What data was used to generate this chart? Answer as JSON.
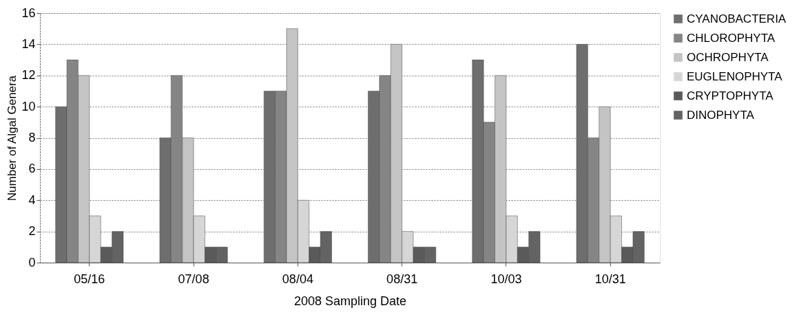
{
  "chart_data": {
    "type": "bar",
    "xlabel": "2008 Sampling Date",
    "ylabel": "Number of Algal Genera",
    "categories": [
      "05/16",
      "07/08",
      "08/04",
      "08/31",
      "10/03",
      "10/31"
    ],
    "series": [
      {
        "name": "CYANOBACTERIA",
        "color": "#6e6e6e",
        "values": [
          10,
          8,
          11,
          11,
          13,
          14
        ]
      },
      {
        "name": "CHLOROPHYTA",
        "color": "#858585",
        "values": [
          13,
          12,
          11,
          12,
          9,
          8
        ]
      },
      {
        "name": "OCHROPHYTA",
        "color": "#c4c4c4",
        "values": [
          12,
          8,
          15,
          14,
          12,
          10
        ]
      },
      {
        "name": "EUGLENOPHYTA",
        "color": "#d6d6d6",
        "values": [
          3,
          3,
          4,
          2,
          3,
          3
        ]
      },
      {
        "name": "CRYPTOPHYTA",
        "color": "#5a5a5a",
        "values": [
          1,
          1,
          1,
          1,
          1,
          1
        ]
      },
      {
        "name": "DINOPHYTA",
        "color": "#636363",
        "values": [
          2,
          1,
          2,
          1,
          2,
          2
        ]
      }
    ],
    "ylim": [
      0,
      16
    ],
    "yticks": [
      0,
      2,
      4,
      6,
      8,
      10,
      12,
      14,
      16
    ],
    "grid": "y",
    "legend": "right"
  }
}
